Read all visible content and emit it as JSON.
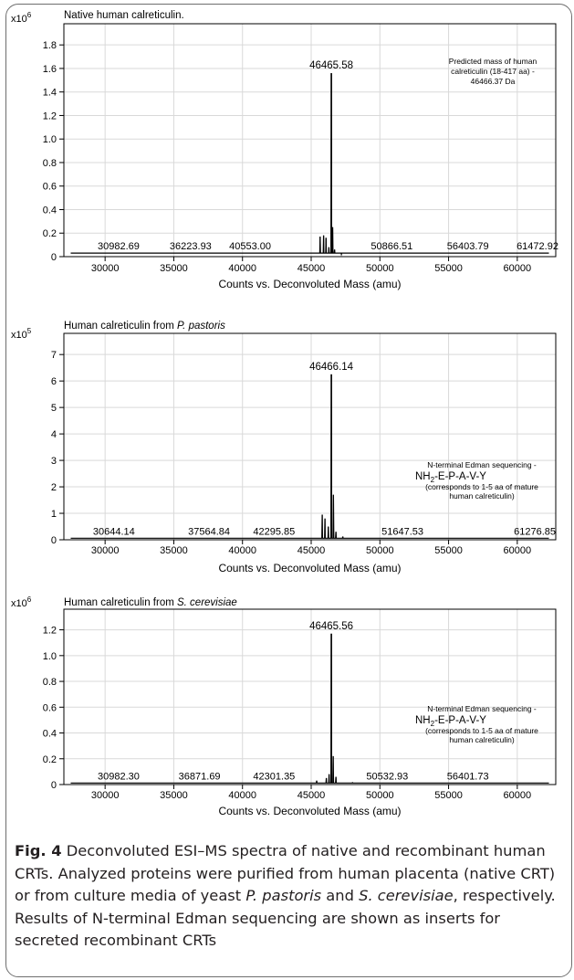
{
  "chart_data": [
    {
      "type": "line",
      "title": "Native human calreticulin.",
      "title_species": "",
      "title_suffix": "",
      "xlabel": "Counts vs. Deconvoluted Mass (amu)",
      "y_multiplier_base": "x10",
      "y_multiplier_exp": "6",
      "xlim": [
        27000,
        62800
      ],
      "ylim": [
        0,
        1.98
      ],
      "x_ticks": [
        30000,
        35000,
        40000,
        45000,
        50000,
        55000,
        60000
      ],
      "y_ticks": [
        0,
        0.2,
        0.4,
        0.6,
        0.8,
        1.0,
        1.2,
        1.4,
        1.6,
        1.8
      ],
      "y_tick_labels": [
        "0",
        "0.2",
        "0.4",
        "0.6",
        "0.8",
        "1.0",
        "1.2",
        "1.4",
        "1.6",
        "1.8"
      ],
      "grid": true,
      "main_peak": {
        "x": 46465.58,
        "y": 1.56,
        "label": "46465.58"
      },
      "minor_peaks": [
        {
          "x": 45650,
          "y": 0.17
        },
        {
          "x": 45900,
          "y": 0.18
        },
        {
          "x": 46080,
          "y": 0.16
        },
        {
          "x": 46290,
          "y": 0.08
        },
        {
          "x": 46560,
          "y": 0.25
        },
        {
          "x": 46700,
          "y": 0.06
        },
        {
          "x": 47200,
          "y": 0.02
        }
      ],
      "baseline": 0.03,
      "x_range": [
        27500,
        62300
      ],
      "baseline_labels": [
        "30982.69",
        "36223.93",
        "40553.00",
        "50866.51",
        "56403.79",
        "61472.92"
      ],
      "baseline_label_x": [
        30982.69,
        36223.93,
        40553.0,
        50866.51,
        56403.79,
        61472.92
      ],
      "annotation": [
        "Predicted mass of human",
        "calreticulin (18-417 aa) -",
        "46466.37 Da"
      ]
    },
    {
      "type": "line",
      "title": "Human calreticulin from ",
      "title_species": "P. pastoris",
      "title_suffix": "",
      "xlabel": "Counts vs. Deconvoluted Mass (amu)",
      "y_multiplier_base": "x10",
      "y_multiplier_exp": "5",
      "xlim": [
        27000,
        62800
      ],
      "ylim": [
        0,
        7.8
      ],
      "x_ticks": [
        30000,
        35000,
        40000,
        45000,
        50000,
        55000,
        60000
      ],
      "y_ticks": [
        0,
        1,
        2,
        3,
        4,
        5,
        6,
        7
      ],
      "y_tick_labels": [
        "0",
        "1",
        "2",
        "3",
        "4",
        "5",
        "6",
        "7"
      ],
      "grid": true,
      "main_peak": {
        "x": 46466.14,
        "y": 6.25,
        "label": "46466.14"
      },
      "minor_peaks": [
        {
          "x": 45800,
          "y": 0.95
        },
        {
          "x": 46000,
          "y": 0.8
        },
        {
          "x": 46250,
          "y": 0.5
        },
        {
          "x": 46620,
          "y": 1.7
        },
        {
          "x": 46800,
          "y": 0.3
        },
        {
          "x": 47300,
          "y": 0.12
        }
      ],
      "baseline": 0.06,
      "x_range": [
        27500,
        62300
      ],
      "baseline_labels": [
        "30644.14",
        "37564.84",
        "42295.85",
        "51647.53",
        "61276.85"
      ],
      "baseline_label_x": [
        30644.14,
        37564.84,
        42295.85,
        51647.53,
        61276.85
      ],
      "edman": {
        "line1": "N-terminal Edman sequencing -",
        "nh": "NH",
        "sub": "2",
        "seq": "-E-P-A-V-Y",
        "line3": "(corresponds to 1-5 aa of mature",
        "line4": "human calreticulin)"
      }
    },
    {
      "type": "line",
      "title": "Human calreticulin from ",
      "title_species": "S. cerevisiae",
      "title_suffix": "",
      "xlabel": "Counts vs. Deconvoluted Mass (amu)",
      "y_multiplier_base": "x10",
      "y_multiplier_exp": "6",
      "xlim": [
        27000,
        62800
      ],
      "ylim": [
        0,
        1.36
      ],
      "x_ticks": [
        30000,
        35000,
        40000,
        45000,
        50000,
        55000,
        60000
      ],
      "y_ticks": [
        0,
        0.2,
        0.4,
        0.6,
        0.8,
        1.0,
        1.2
      ],
      "y_tick_labels": [
        "0",
        "0.2",
        "0.4",
        "0.6",
        "0.8",
        "1.0",
        "1.2"
      ],
      "grid": true,
      "main_peak": {
        "x": 46465.56,
        "y": 1.17,
        "label": "46465.56"
      },
      "minor_peaks": [
        {
          "x": 45400,
          "y": 0.03
        },
        {
          "x": 46100,
          "y": 0.05
        },
        {
          "x": 46300,
          "y": 0.08
        },
        {
          "x": 46600,
          "y": 0.22
        },
        {
          "x": 46800,
          "y": 0.06
        },
        {
          "x": 48000,
          "y": 0.015
        }
      ],
      "baseline": 0.012,
      "x_range": [
        27500,
        62300
      ],
      "baseline_labels": [
        "30982.30",
        "36871.69",
        "42301.35",
        "50532.93",
        "56401.73"
      ],
      "baseline_label_x": [
        30982.3,
        36871.69,
        42301.35,
        50532.93,
        56401.73
      ],
      "edman": {
        "line1": "N-terminal Edman sequencing -",
        "nh": "NH",
        "sub": "2",
        "seq": "-E-P-A-V-Y",
        "line3": "(corresponds to 1-5 aa of mature",
        "line4": "human calreticulin)"
      }
    }
  ],
  "caption": {
    "fig_label": "Fig. 4",
    "p1": "  Deconvoluted ESI–MS spectra of native and recombinant human CRTs. Analyzed proteins were purified from human placenta (native CRT) or from culture media of yeast ",
    "sp1": "P. pastoris",
    "p2": " and ",
    "sp2": "S. cerevisiae",
    "p3": ", respectively. Results of N-terminal Edman sequencing are shown as inserts for secreted recombinant CRTs"
  }
}
